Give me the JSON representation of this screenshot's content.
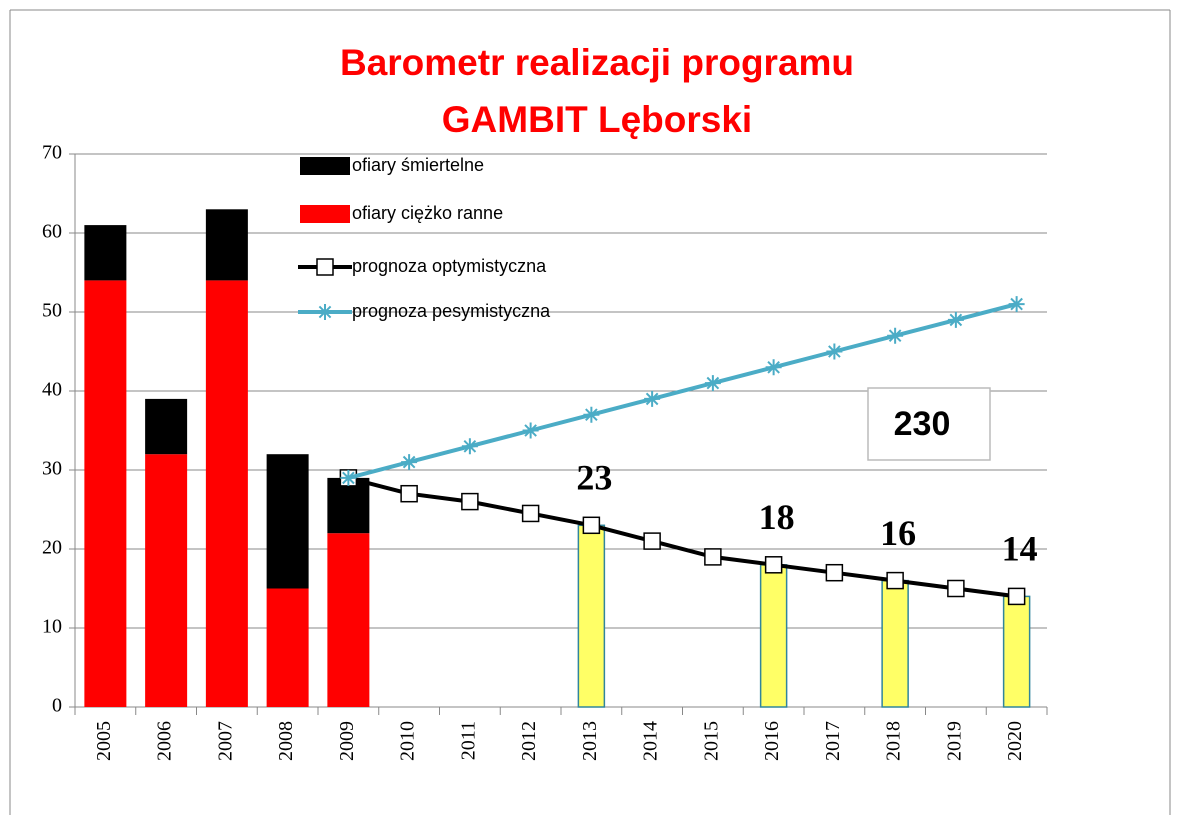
{
  "chart_data": {
    "type": "bar",
    "title_lines": [
      "Barometr realizacji programu",
      "GAMBIT Lęborski"
    ],
    "categories": [
      "2005",
      "2006",
      "2007",
      "2008",
      "2009",
      "2010",
      "2011",
      "2012",
      "2013",
      "2014",
      "2015",
      "2016",
      "2017",
      "2018",
      "2019",
      "2020"
    ],
    "series": [
      {
        "name": "ofiary śmiertelne",
        "type": "bar",
        "color": "#000000",
        "values": [
          7,
          7,
          9,
          17,
          7,
          null,
          null,
          null,
          null,
          null,
          null,
          null,
          null,
          null,
          null,
          null
        ]
      },
      {
        "name": "ofiary ciężko ranne",
        "type": "bar",
        "color": "#ff0000",
        "values": [
          54,
          32,
          54,
          15,
          22,
          null,
          null,
          null,
          null,
          null,
          null,
          null,
          null,
          null,
          null,
          null
        ]
      },
      {
        "name": "prognoza optymistyczna",
        "type": "line",
        "marker": "square",
        "color": "#000000",
        "values": [
          null,
          null,
          null,
          null,
          29,
          27,
          26,
          24.5,
          23,
          21,
          19,
          18,
          17,
          16,
          15,
          14
        ]
      },
      {
        "name": "prognoza pesymistyczna",
        "type": "line",
        "marker": "asterisk",
        "color": "#4bacc6",
        "values": [
          null,
          null,
          null,
          null,
          29,
          31,
          33,
          35,
          37,
          39,
          41,
          43,
          45,
          47,
          49,
          51
        ]
      },
      {
        "type": "bar",
        "color": "#ffff66",
        "data_labels": true,
        "values": [
          null,
          null,
          null,
          null,
          null,
          null,
          null,
          null,
          23,
          null,
          null,
          18,
          null,
          16,
          null,
          14
        ]
      }
    ],
    "annotation": "230",
    "ylim": [
      0,
      70
    ],
    "yticks": [
      0,
      10,
      20,
      30,
      40,
      50,
      60,
      70
    ],
    "grid": true,
    "legend": "top-left"
  }
}
